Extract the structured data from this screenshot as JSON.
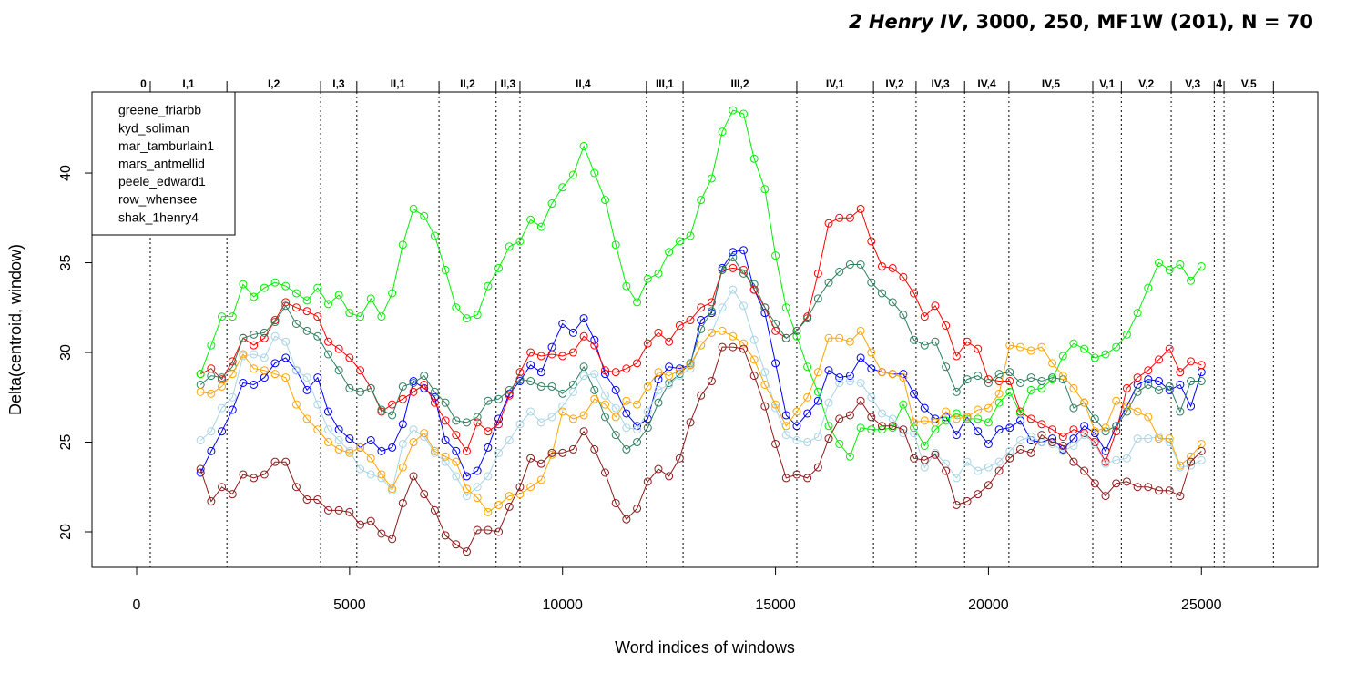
{
  "chart_data": {
    "type": "line",
    "title_italic": "2 Henry IV",
    "title_rest": ", 3000, 250, MF1W (201), N = 70",
    "x_label": "Word indices of windows",
    "y_label": "Delta(centroid, window)",
    "xlim": [
      -1048,
      27731
    ],
    "ylim": [
      18.02,
      44.52
    ],
    "xticks": [
      0,
      5000,
      10000,
      15000,
      20000,
      25000
    ],
    "yticks": [
      20,
      25,
      30,
      35,
      40
    ],
    "legend_position": "top-left",
    "marker": "open-circle",
    "scenes": {
      "labels": [
        "0",
        "I,1",
        "I,2",
        "I,3",
        "II,1",
        "II,2",
        "II,3",
        "II,4",
        "III,1",
        "III,2",
        "IV,1",
        "IV,2",
        "IV,3",
        "IV,4",
        "IV,5",
        "V,1",
        "V,2",
        "V,3",
        "4",
        "V,5"
      ],
      "boundaries": [
        320,
        2120,
        4320,
        5170,
        7100,
        8440,
        9000,
        11970,
        12830,
        15500,
        17300,
        18300,
        19440,
        20480,
        22450,
        23120,
        24290,
        25300,
        25530,
        26690
      ]
    },
    "x": [
      1500,
      1750,
      2000,
      2250,
      2500,
      2750,
      3000,
      3250,
      3500,
      3750,
      4000,
      4250,
      4500,
      4750,
      5000,
      5250,
      5500,
      5750,
      6000,
      6250,
      6500,
      6750,
      7000,
      7250,
      7500,
      7750,
      8000,
      8250,
      8500,
      8750,
      9000,
      9250,
      9500,
      9750,
      10000,
      10250,
      10500,
      10750,
      11000,
      11250,
      11500,
      11750,
      12000,
      12250,
      12500,
      12750,
      13000,
      13250,
      13500,
      13750,
      14000,
      14250,
      14500,
      14750,
      15000,
      15250,
      15500,
      15750,
      16000,
      16250,
      16500,
      16750,
      17000,
      17250,
      17500,
      17750,
      18000,
      18250,
      18500,
      18750,
      19000,
      19250,
      19500,
      19750,
      20000,
      20250,
      20500,
      20750,
      21000,
      21250,
      21500,
      21750,
      22000,
      22250,
      22500,
      22750,
      23000,
      23250,
      23500,
      23750,
      24000,
      24250,
      24500,
      24750,
      25000
    ],
    "series": [
      {
        "name": "greene_friarbb",
        "color": "#0000ff",
        "values": [
          23.3,
          24.5,
          25.6,
          26.8,
          28.3,
          28.2,
          28.6,
          29.4,
          29.7,
          29.0,
          27.9,
          28.6,
          26.7,
          25.7,
          25.2,
          24.7,
          25.1,
          24.5,
          24.7,
          26.0,
          28.4,
          28.0,
          27.5,
          25.1,
          24.5,
          23.1,
          23.4,
          24.7,
          26.3,
          27.7,
          28.4,
          29.3,
          28.9,
          30.3,
          31.6,
          31.1,
          31.9,
          30.7,
          28.8,
          27.9,
          26.6,
          25.9,
          26.3,
          28.5,
          29.2,
          29.1,
          29.3,
          31.8,
          32.2,
          34.7,
          35.6,
          35.7,
          33.5,
          32.2,
          29.4,
          26.5,
          25.9,
          26.6,
          27.3,
          29.0,
          28.6,
          28.7,
          29.7,
          29.1,
          28.9,
          28.8,
          28.8,
          27.7,
          26.9,
          26.3,
          26.4,
          25.4,
          26.4,
          25.6,
          24.9,
          25.7,
          25.8,
          26.2,
          25.1,
          25.0,
          25.2,
          24.6,
          25.2,
          25.9,
          25.5,
          24.5,
          25.9,
          27.0,
          28.2,
          28.5,
          28.4,
          27.9,
          28.2,
          27.0,
          28.9
        ]
      },
      {
        "name": "kyd_soliman",
        "color": "#ff0000",
        "values": [
          28.8,
          29.1,
          28.5,
          29.5,
          30.8,
          30.4,
          30.8,
          31.8,
          32.8,
          32.5,
          32.3,
          32.0,
          30.6,
          30.2,
          29.7,
          29.0,
          28.0,
          26.7,
          27.1,
          27.4,
          27.8,
          28.2,
          27.2,
          26.2,
          25.4,
          24.5,
          26.1,
          25.6,
          26.0,
          27.6,
          28.9,
          30.0,
          29.8,
          29.9,
          29.8,
          30.0,
          30.9,
          30.4,
          29.0,
          28.9,
          29.1,
          29.4,
          30.5,
          31.1,
          30.6,
          31.5,
          31.8,
          32.5,
          32.8,
          34.6,
          34.7,
          34.6,
          33.5,
          32.5,
          31.2,
          30.8,
          31.2,
          32.0,
          34.4,
          37.2,
          37.5,
          37.5,
          38.0,
          36.2,
          34.8,
          34.7,
          34.2,
          33.3,
          32.0,
          32.6,
          31.5,
          29.8,
          30.6,
          30.2,
          28.5,
          28.4,
          28.4,
          26.7,
          26.3,
          26.0,
          25.7,
          25.3,
          25.7,
          25.5,
          25.0,
          23.9,
          25.6,
          28.0,
          28.6,
          29.0,
          29.6,
          30.2,
          28.9,
          29.5,
          29.3
        ]
      },
      {
        "name": "mar_tamburlain1",
        "color": "#00ee00",
        "values": [
          28.8,
          30.4,
          32.0,
          32.0,
          33.8,
          33.1,
          33.6,
          33.9,
          33.7,
          33.3,
          32.9,
          33.6,
          32.7,
          33.2,
          32.2,
          32.0,
          33.0,
          32.0,
          33.3,
          36.0,
          38.0,
          37.6,
          36.5,
          34.6,
          32.5,
          31.9,
          32.1,
          33.7,
          34.7,
          35.9,
          36.2,
          37.4,
          37.0,
          38.3,
          39.2,
          39.9,
          41.5,
          40.0,
          38.5,
          36.0,
          33.7,
          32.8,
          34.1,
          34.4,
          35.6,
          36.2,
          36.5,
          38.5,
          39.7,
          42.3,
          43.5,
          43.3,
          40.8,
          39.1,
          35.4,
          32.5,
          30.9,
          29.2,
          27.8,
          25.9,
          24.9,
          24.2,
          25.8,
          25.7,
          25.7,
          25.8,
          27.1,
          25.8,
          24.8,
          25.7,
          26.2,
          26.6,
          26.3,
          26.3,
          26.1,
          27.2,
          27.8,
          26.6,
          27.9,
          28.0,
          28.5,
          29.8,
          30.5,
          30.2,
          29.7,
          29.9,
          30.3,
          31.0,
          32.2,
          33.6,
          35.0,
          34.6,
          34.9,
          34.0,
          34.8
        ]
      },
      {
        "name": "mars_antmellid",
        "color": "#2e7d5e",
        "values": [
          28.2,
          28.7,
          28.6,
          29.2,
          30.8,
          31.0,
          31.1,
          31.7,
          32.6,
          31.6,
          31.2,
          30.9,
          29.9,
          29.0,
          28.0,
          27.8,
          28.0,
          26.8,
          26.5,
          28.1,
          28.3,
          28.7,
          27.8,
          27.2,
          26.2,
          26.1,
          26.4,
          27.3,
          27.4,
          27.9,
          28.5,
          28.4,
          28.1,
          28.1,
          27.7,
          28.2,
          29.2,
          27.9,
          26.4,
          25.4,
          24.6,
          25.0,
          25.8,
          27.2,
          28.3,
          28.8,
          29.4,
          31.3,
          32.3,
          34.6,
          35.3,
          34.4,
          33.8,
          32.5,
          31.6,
          30.8,
          31.2,
          31.9,
          33.0,
          33.9,
          34.5,
          34.9,
          34.9,
          33.9,
          33.3,
          32.8,
          32.1,
          30.7,
          30.4,
          30.6,
          29.2,
          27.8,
          28.5,
          28.7,
          28.3,
          28.8,
          28.9,
          28.3,
          28.6,
          28.4,
          28.6,
          28.5,
          26.9,
          27.2,
          26.3,
          25.6,
          25.9,
          26.7,
          27.8,
          28.2,
          27.9,
          28.1,
          26.7,
          28.4,
          28.4
        ]
      },
      {
        "name": "peele_edward1",
        "color": "#a8d4e6",
        "values": [
          25.1,
          25.6,
          26.9,
          27.5,
          29.8,
          29.9,
          29.7,
          30.9,
          30.6,
          29.0,
          28.6,
          27.1,
          25.7,
          25.1,
          24.5,
          23.5,
          23.2,
          23.0,
          22.3,
          24.9,
          25.7,
          25.3,
          24.4,
          23.9,
          23.1,
          22.0,
          22.5,
          23.1,
          24.4,
          25.1,
          26.0,
          26.7,
          26.1,
          26.4,
          27.0,
          27.8,
          28.7,
          28.8,
          27.6,
          26.9,
          25.8,
          25.7,
          26.7,
          27.9,
          28.2,
          28.7,
          29.1,
          30.4,
          31.1,
          32.5,
          33.5,
          32.6,
          30.7,
          28.9,
          26.9,
          25.4,
          25.1,
          25.0,
          25.3,
          27.2,
          28.3,
          28.4,
          28.3,
          27.5,
          26.6,
          26.3,
          25.5,
          25.5,
          23.6,
          24.4,
          23.8,
          23.0,
          23.9,
          23.4,
          23.6,
          23.9,
          24.5,
          25.1,
          25.3,
          25.0,
          24.9,
          24.5,
          24.8,
          25.4,
          24.9,
          23.8,
          24.0,
          24.1,
          25.2,
          25.2,
          25.3,
          25.0,
          23.6,
          23.7,
          24.0
        ]
      },
      {
        "name": "row_whensee",
        "color": "#ffa500",
        "values": [
          27.8,
          27.7,
          28.1,
          28.8,
          29.9,
          29.1,
          29.0,
          28.8,
          28.6,
          27.1,
          26.3,
          25.7,
          25.0,
          24.6,
          24.4,
          24.7,
          24.1,
          23.2,
          22.4,
          23.6,
          25.0,
          25.5,
          24.5,
          24.2,
          23.9,
          22.4,
          21.9,
          21.1,
          21.5,
          22.0,
          22.1,
          22.5,
          22.9,
          24.3,
          26.7,
          26.3,
          26.5,
          27.4,
          27.1,
          26.4,
          27.3,
          27.1,
          28.1,
          28.9,
          28.7,
          29.0,
          29.3,
          30.4,
          31.1,
          31.2,
          30.9,
          30.5,
          29.6,
          28.2,
          27.1,
          25.9,
          26.7,
          27.5,
          28.9,
          30.8,
          30.8,
          30.6,
          31.2,
          30.0,
          28.9,
          28.8,
          28.6,
          26.1,
          26.2,
          26.1,
          26.7,
          26.3,
          26.4,
          26.8,
          26.9,
          27.7,
          30.4,
          30.3,
          30.1,
          30.3,
          29.4,
          28.7,
          28.0,
          27.2,
          25.6,
          25.8,
          27.3,
          27.0,
          26.7,
          26.4,
          25.2,
          25.2,
          23.7,
          24.2,
          24.9
        ]
      },
      {
        "name": "shak_1henry4",
        "color": "#8b1a1a",
        "values": [
          23.5,
          21.7,
          22.5,
          22.1,
          23.2,
          23.0,
          23.2,
          23.9,
          23.9,
          22.5,
          21.8,
          21.8,
          21.2,
          21.2,
          21.1,
          20.4,
          20.6,
          19.9,
          19.6,
          21.6,
          23.1,
          22.1,
          21.2,
          19.8,
          19.3,
          18.9,
          20.1,
          20.1,
          20.0,
          21.4,
          22.5,
          24.1,
          23.8,
          24.4,
          24.4,
          24.6,
          25.6,
          24.6,
          23.3,
          21.6,
          20.7,
          21.3,
          22.8,
          23.5,
          23.1,
          24.1,
          26.1,
          27.6,
          28.4,
          30.3,
          30.3,
          30.2,
          28.7,
          27.0,
          24.9,
          23.0,
          23.2,
          23.0,
          23.6,
          25.2,
          26.3,
          26.5,
          27.3,
          26.4,
          25.9,
          25.9,
          25.7,
          24.1,
          24.0,
          24.3,
          23.4,
          21.5,
          21.7,
          22.1,
          22.6,
          23.4,
          24.1,
          24.6,
          24.4,
          25.4,
          25.0,
          24.8,
          23.9,
          23.4,
          22.7,
          22.0,
          22.7,
          22.8,
          22.5,
          22.5,
          22.3,
          22.3,
          22.0,
          23.9,
          24.5
        ]
      }
    ]
  }
}
